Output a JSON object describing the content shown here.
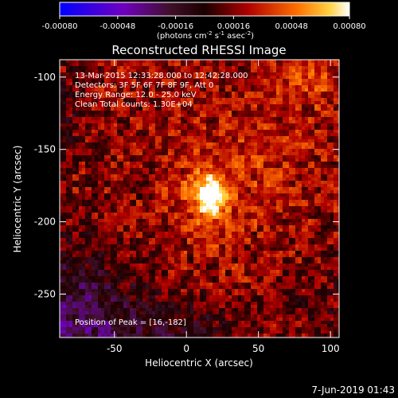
{
  "chart_data": {
    "type": "heatmap",
    "title": "Reconstructed RHESSI Image",
    "xlabel": "Heliocentric X (arcsec)",
    "ylabel": "Heliocentric Y (arcsec)",
    "xlim": [
      -88,
      106
    ],
    "ylim": [
      -280,
      -88
    ],
    "xticks": [
      -50,
      0,
      50,
      100
    ],
    "yticks": [
      -100,
      -150,
      -200,
      -250
    ],
    "colorbar": {
      "ticks": [
        -0.0008,
        -0.00048,
        -0.00016,
        0.00016,
        0.00048,
        0.0008
      ],
      "tick_labels": [
        "-0.00080",
        "-0.00048",
        "-0.00016",
        "0.00016",
        "0.00048",
        "0.00080"
      ],
      "min": -0.0008,
      "max": 0.0008,
      "label_main": "(photons cm",
      "label_sup1": "-2",
      "label_mid1": " s",
      "label_sup2": "-1",
      "label_mid2": " asec",
      "label_sup3": "-2",
      "label_end": ")"
    },
    "annotations": [
      "13-Mar-2015 12:33:28.000 to 12:42:28.000",
      "Detectors: 3F 5F 6F 7F 8F 9F, Att 0",
      "Energy Range: 12.0 - 25.0 keV",
      "Clean     Total counts: 1.30E+04"
    ],
    "peak_label": "Position of Peak = [16,-182]",
    "peak": [
      16,
      -182
    ],
    "timestamp": "7-Jun-2019 01:43"
  }
}
